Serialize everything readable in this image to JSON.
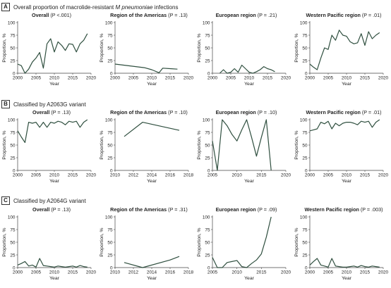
{
  "sections": [
    {
      "letter": "A",
      "title_pre": "Overall proportion of macrolide-resistant ",
      "title_italic": "M pneumoniae",
      "title_post": " infections"
    },
    {
      "letter": "B",
      "title_pre": "Classified by A2063G variant",
      "title_italic": "",
      "title_post": ""
    },
    {
      "letter": "C",
      "title_pre": "Classified by A2064G variant",
      "title_italic": "",
      "title_post": ""
    }
  ],
  "chart_data": [
    {
      "type": "line",
      "section": "A",
      "panel_title": "Overall",
      "p_value": "(P <.001)",
      "xlabel": "Year",
      "ylabel": "Proportion, %",
      "xlim": [
        2000,
        2020
      ],
      "ylim": [
        0,
        100
      ],
      "xticks": [
        2000,
        2005,
        2010,
        2015,
        2020
      ],
      "yticks": [
        0,
        25,
        50,
        75,
        100
      ],
      "series": [
        {
          "x": [
            2000,
            2001,
            2002,
            2003,
            2004,
            2005,
            2006,
            2007,
            2008,
            2009,
            2010,
            2011,
            2012,
            2013,
            2014,
            2015,
            2016,
            2017,
            2018,
            2019
          ],
          "values": [
            18,
            15,
            0,
            8,
            22,
            30,
            41,
            10,
            58,
            68,
            42,
            62,
            55,
            45,
            58,
            57,
            42,
            58,
            65,
            78
          ]
        }
      ]
    },
    {
      "type": "line",
      "section": "A",
      "panel_title": "Region of the Americas",
      "p_value": "(P = .13)",
      "xlabel": "Year",
      "ylabel": "Proportion, %",
      "xlim": [
        2000,
        2020
      ],
      "ylim": [
        0,
        100
      ],
      "xticks": [
        2000,
        2005,
        2010,
        2015,
        2020
      ],
      "yticks": [
        0,
        25,
        50,
        75,
        100
      ],
      "series": [
        {
          "x": [
            2000,
            2008,
            2010,
            2012,
            2013,
            2015,
            2017
          ],
          "values": [
            18,
            11,
            7,
            1,
            10,
            9,
            8
          ]
        }
      ]
    },
    {
      "type": "line",
      "section": "A",
      "panel_title": "European region",
      "p_value": "(P = .21)",
      "xlabel": "Year",
      "ylabel": "Proportion, %",
      "xlim": [
        2000,
        2020
      ],
      "ylim": [
        0,
        100
      ],
      "xticks": [
        2000,
        2005,
        2010,
        2015,
        2020
      ],
      "yticks": [
        0,
        25,
        50,
        75,
        100
      ],
      "series": [
        {
          "x": [
            2002,
            2003,
            2004,
            2005,
            2006,
            2007,
            2008,
            2009,
            2010,
            2011,
            2012,
            2013,
            2014,
            2015,
            2016,
            2017
          ],
          "values": [
            0,
            7,
            0,
            2,
            9,
            2,
            16,
            9,
            2,
            0,
            3,
            7,
            13,
            9,
            7,
            3
          ]
        }
      ]
    },
    {
      "type": "line",
      "section": "A",
      "panel_title": "Western Pacific region",
      "p_value": "(P = .01)",
      "xlabel": "Year",
      "ylabel": "Proportion, %",
      "xlim": [
        2000,
        2020
      ],
      "ylim": [
        0,
        100
      ],
      "xticks": [
        2000,
        2005,
        2010,
        2015,
        2020
      ],
      "yticks": [
        0,
        25,
        50,
        75,
        100
      ],
      "series": [
        {
          "x": [
            2000,
            2001,
            2002,
            2003,
            2004,
            2005,
            2006,
            2007,
            2008,
            2009,
            2010,
            2011,
            2012,
            2013,
            2014,
            2015,
            2016,
            2017,
            2018,
            2019
          ],
          "values": [
            18,
            12,
            7,
            30,
            50,
            47,
            75,
            65,
            85,
            75,
            73,
            62,
            58,
            60,
            78,
            55,
            82,
            68,
            75,
            80
          ]
        }
      ]
    },
    {
      "type": "line",
      "section": "B",
      "panel_title": "Overall",
      "p_value": "(P = .13)",
      "xlabel": "Year",
      "ylabel": "Proportion, %",
      "xlim": [
        2000,
        2020
      ],
      "ylim": [
        0,
        100
      ],
      "xticks": [
        2000,
        2005,
        2010,
        2015,
        2020
      ],
      "yticks": [
        0,
        25,
        50,
        75,
        100
      ],
      "series": [
        {
          "x": [
            2000,
            2001,
            2002,
            2003,
            2004,
            2005,
            2006,
            2007,
            2008,
            2009,
            2010,
            2011,
            2012,
            2013,
            2014,
            2015,
            2016,
            2017,
            2018,
            2019
          ],
          "values": [
            78,
            66,
            55,
            95,
            93,
            95,
            85,
            95,
            85,
            95,
            93,
            97,
            95,
            90,
            97,
            95,
            97,
            85,
            95,
            100
          ]
        }
      ]
    },
    {
      "type": "line",
      "section": "B",
      "panel_title": "Region of the Americas",
      "p_value": "(P = .10)",
      "xlabel": "Year",
      "ylabel": "Proportion, %",
      "xlim": [
        2010,
        2018
      ],
      "ylim": [
        0,
        100
      ],
      "xticks": [
        2010,
        2012,
        2014,
        2016,
        2018
      ],
      "yticks": [
        0,
        25,
        50,
        75,
        100
      ],
      "series": [
        {
          "x": [
            2011,
            2013,
            2016,
            2017
          ],
          "values": [
            67,
            95,
            83,
            79
          ]
        }
      ]
    },
    {
      "type": "line",
      "section": "B",
      "panel_title": "European region",
      "p_value": "(P = .10)",
      "xlabel": "Year",
      "ylabel": "Proportion, %",
      "xlim": [
        2005,
        2020
      ],
      "ylim": [
        0,
        100
      ],
      "xticks": [
        2005,
        2010,
        2015,
        2020
      ],
      "yticks": [
        0,
        25,
        50,
        75,
        100
      ],
      "series": [
        {
          "x": [
            2005,
            2006,
            2007,
            2008,
            2009,
            2010,
            2011,
            2012,
            2013,
            2014,
            2015,
            2016,
            2017
          ],
          "values": [
            58,
            0,
            100,
            88,
            71,
            58,
            80,
            100,
            65,
            28,
            65,
            100,
            0
          ]
        }
      ]
    },
    {
      "type": "line",
      "section": "B",
      "panel_title": "Western Pacific region",
      "p_value": "(P = .01)",
      "xlabel": "Year",
      "ylabel": "Proportion, %",
      "xlim": [
        2000,
        2020
      ],
      "ylim": [
        0,
        100
      ],
      "xticks": [
        2000,
        2005,
        2010,
        2015,
        2020
      ],
      "yticks": [
        0,
        25,
        50,
        75,
        100
      ],
      "series": [
        {
          "x": [
            2000,
            2001,
            2002,
            2003,
            2004,
            2005,
            2006,
            2007,
            2008,
            2009,
            2010,
            2011,
            2012,
            2013,
            2014,
            2015,
            2016,
            2017,
            2018,
            2019
          ],
          "values": [
            78,
            80,
            82,
            95,
            92,
            97,
            82,
            93,
            88,
            93,
            95,
            95,
            93,
            90,
            97,
            95,
            97,
            85,
            95,
            100
          ]
        }
      ]
    },
    {
      "type": "line",
      "section": "C",
      "panel_title": "Overall",
      "p_value": "(P = .13)",
      "xlabel": "Year",
      "ylabel": "Proportion, %",
      "xlim": [
        2000,
        2020
      ],
      "ylim": [
        0,
        100
      ],
      "xticks": [
        2000,
        2005,
        2010,
        2015,
        2020
      ],
      "yticks": [
        0,
        25,
        50,
        75,
        100
      ],
      "series": [
        {
          "x": [
            2000,
            2001,
            2002,
            2003,
            2004,
            2005,
            2006,
            2007,
            2008,
            2009,
            2010,
            2011,
            2012,
            2013,
            2014,
            2015,
            2016,
            2017,
            2018,
            2019
          ],
          "values": [
            5,
            8,
            12,
            3,
            5,
            1,
            18,
            4,
            3,
            2,
            1,
            3,
            2,
            1,
            2,
            3,
            1,
            4,
            2,
            1
          ]
        }
      ]
    },
    {
      "type": "line",
      "section": "C",
      "panel_title": "Region of the Americas",
      "p_value": "(P = .31)",
      "xlabel": "Year",
      "ylabel": "Proportion, %",
      "xlim": [
        2010,
        2018
      ],
      "ylim": [
        0,
        100
      ],
      "xticks": [
        2010,
        2012,
        2014,
        2016,
        2018
      ],
      "yticks": [
        0,
        25,
        50,
        75,
        100
      ],
      "series": [
        {
          "x": [
            2011,
            2013,
            2016,
            2017
          ],
          "values": [
            10,
            0,
            15,
            22
          ]
        }
      ]
    },
    {
      "type": "line",
      "section": "C",
      "panel_title": "European region",
      "p_value": "(P = .09)",
      "xlabel": "Year",
      "ylabel": "Proportion, %",
      "xlim": [
        2005,
        2020
      ],
      "ylim": [
        0,
        100
      ],
      "xticks": [
        2005,
        2010,
        2015,
        2020
      ],
      "yticks": [
        0,
        25,
        50,
        75,
        100
      ],
      "series": [
        {
          "x": [
            2005,
            2006,
            2007,
            2008,
            2009,
            2010,
            2011,
            2012,
            2013,
            2014,
            2015,
            2016,
            2017
          ],
          "values": [
            20,
            0,
            0,
            10,
            12,
            14,
            2,
            0,
            8,
            15,
            27,
            60,
            100
          ]
        }
      ]
    },
    {
      "type": "line",
      "section": "C",
      "panel_title": "Western Pacific region",
      "p_value": "(P = .003)",
      "xlabel": "Year",
      "ylabel": "Proportion, %",
      "xlim": [
        2000,
        2020
      ],
      "ylim": [
        0,
        100
      ],
      "xticks": [
        2000,
        2005,
        2010,
        2015,
        2020
      ],
      "yticks": [
        0,
        25,
        50,
        75,
        100
      ],
      "series": [
        {
          "x": [
            2000,
            2001,
            2002,
            2003,
            2004,
            2005,
            2006,
            2007,
            2008,
            2009,
            2010,
            2011,
            2012,
            2013,
            2014,
            2015,
            2016,
            2017,
            2018,
            2019
          ],
          "values": [
            5,
            12,
            18,
            5,
            3,
            1,
            18,
            3,
            2,
            1,
            1,
            2,
            3,
            1,
            4,
            2,
            1,
            3,
            2,
            1
          ]
        }
      ]
    }
  ]
}
